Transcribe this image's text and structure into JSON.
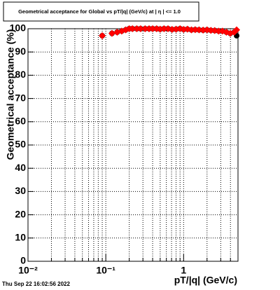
{
  "chart_data": {
    "type": "scatter",
    "title": "Geometrical acceptance for Global vs pT/|q| (GeV/c) at |  η  | <= 1.0",
    "x_label": "pT/|q| (GeV/c)",
    "y_label": "Geometrical acceptance (%)",
    "footer": "Thu Sep 22 16:02:56 2022",
    "log_x": true,
    "grid": true,
    "xlim": [
      0.01,
      5
    ],
    "ylim": [
      0,
      100
    ],
    "xticks": [
      {
        "value": 0.01,
        "label": "10⁻²"
      },
      {
        "value": 0.1,
        "label": "10⁻¹"
      },
      1
    ],
    "xminor": [
      0.02,
      0.03,
      0.04,
      0.05,
      0.06,
      0.07,
      0.08,
      0.09,
      0.2,
      0.3,
      0.4,
      0.5,
      0.6,
      0.7,
      0.8,
      0.9,
      2,
      3,
      4,
      5
    ],
    "yticks": [
      0,
      10,
      20,
      30,
      40,
      50,
      60,
      70,
      80,
      90,
      100
    ],
    "x": [
      0.09,
      0.12,
      0.14,
      0.16,
      0.18,
      0.2,
      0.22,
      0.25,
      0.28,
      0.32,
      0.36,
      0.4,
      0.45,
      0.5,
      0.56,
      0.63,
      0.71,
      0.8,
      0.9,
      1.0,
      1.12,
      1.26,
      1.41,
      1.58,
      1.78,
      2.0,
      2.24,
      2.51,
      2.82,
      3.16,
      3.55,
      3.98,
      4.47,
      4.8
    ],
    "series": [
      {
        "color": "#000000",
        "marker": "circle",
        "values": [
          97,
          98,
          98.5,
          99,
          99.5,
          100,
          100,
          100,
          100,
          100,
          100,
          100,
          100,
          99.8,
          100,
          100,
          99.7,
          99.8,
          100,
          99.7,
          99.8,
          99.5,
          99.6,
          99.5,
          99.4,
          99.5,
          99.3,
          99.2,
          99,
          99,
          98.5,
          98,
          98.5,
          97
        ]
      },
      {
        "color": "#ff0000",
        "marker": "diamond",
        "values": [
          97,
          98,
          98.5,
          99,
          99.5,
          100,
          100,
          100,
          100,
          100,
          100,
          100,
          100,
          99.8,
          100,
          100,
          99.7,
          99.8,
          100,
          99.7,
          99.8,
          99.5,
          99.6,
          99.5,
          99.4,
          99.5,
          99.3,
          99.2,
          99,
          99,
          98.5,
          98,
          98.5,
          99.5
        ]
      }
    ]
  }
}
